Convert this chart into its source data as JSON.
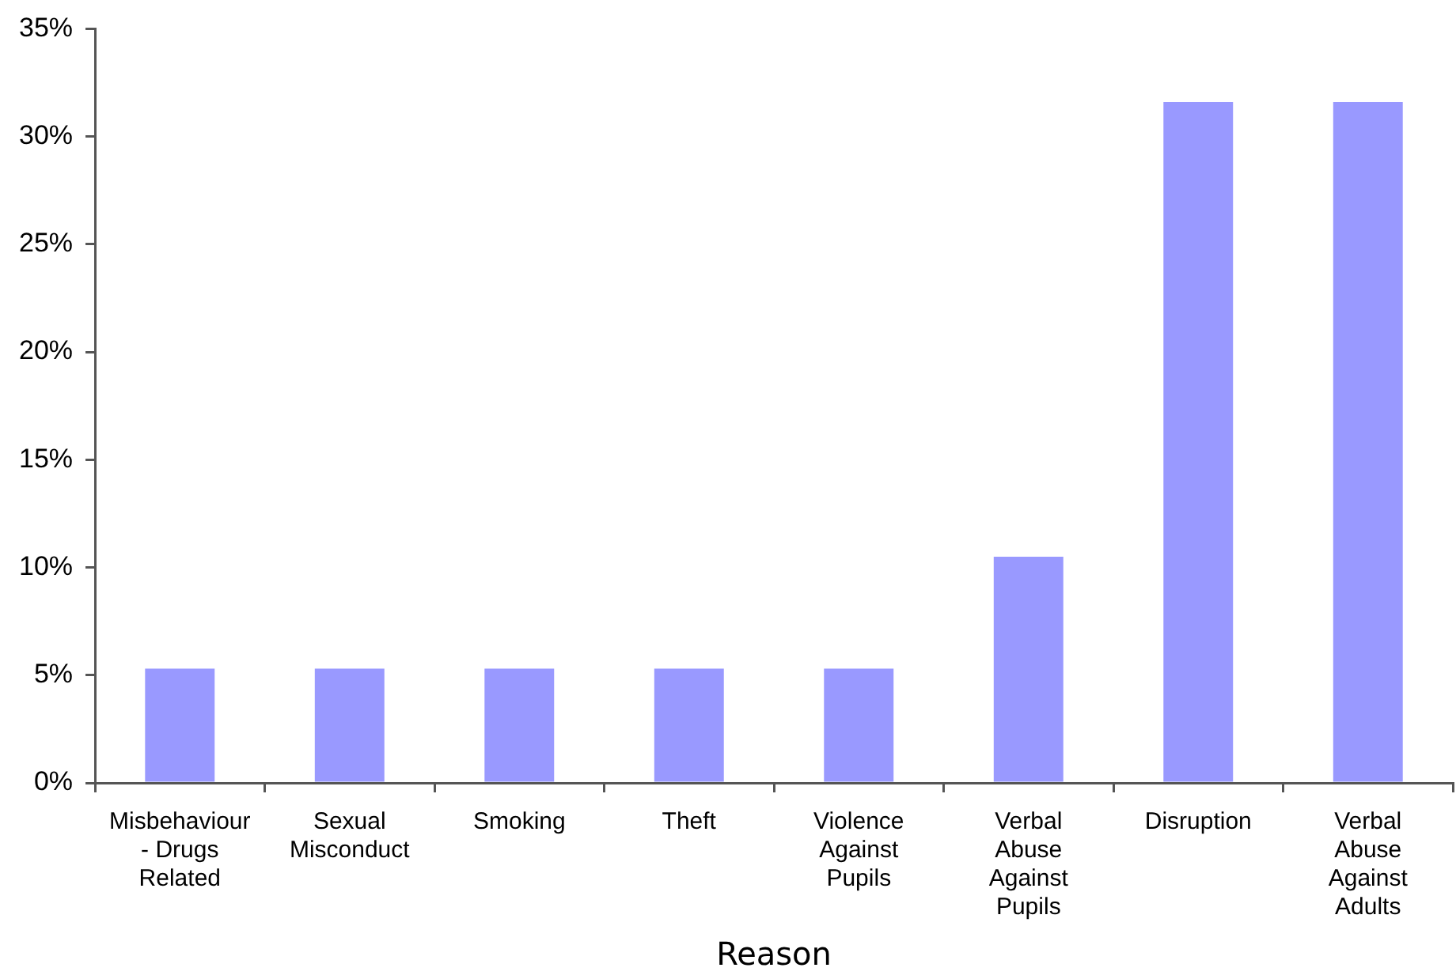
{
  "chart_data": {
    "type": "bar",
    "xlabel": "Reason",
    "categories": [
      "Misbehaviour - Drugs Related",
      "Sexual Misconduct",
      "Smoking",
      "Theft",
      "Violence Against Pupils",
      "Verbal Abuse Against Pupils",
      "Disruption",
      "Verbal Abuse Against Adults"
    ],
    "values": [
      5.3,
      5.3,
      5.3,
      5.3,
      5.3,
      10.5,
      31.6,
      31.6
    ],
    "color": "#9999ff",
    "ylim": [
      0,
      35
    ],
    "yticks": [
      {
        "value": 0,
        "label": "0%"
      },
      {
        "value": 5,
        "label": "5%"
      },
      {
        "value": 10,
        "label": "10%"
      },
      {
        "value": 15,
        "label": "15%"
      },
      {
        "value": 20,
        "label": "20%"
      },
      {
        "value": 25,
        "label": "25%"
      },
      {
        "value": 30,
        "label": "30%"
      },
      {
        "value": 35,
        "label": "35%"
      }
    ]
  }
}
